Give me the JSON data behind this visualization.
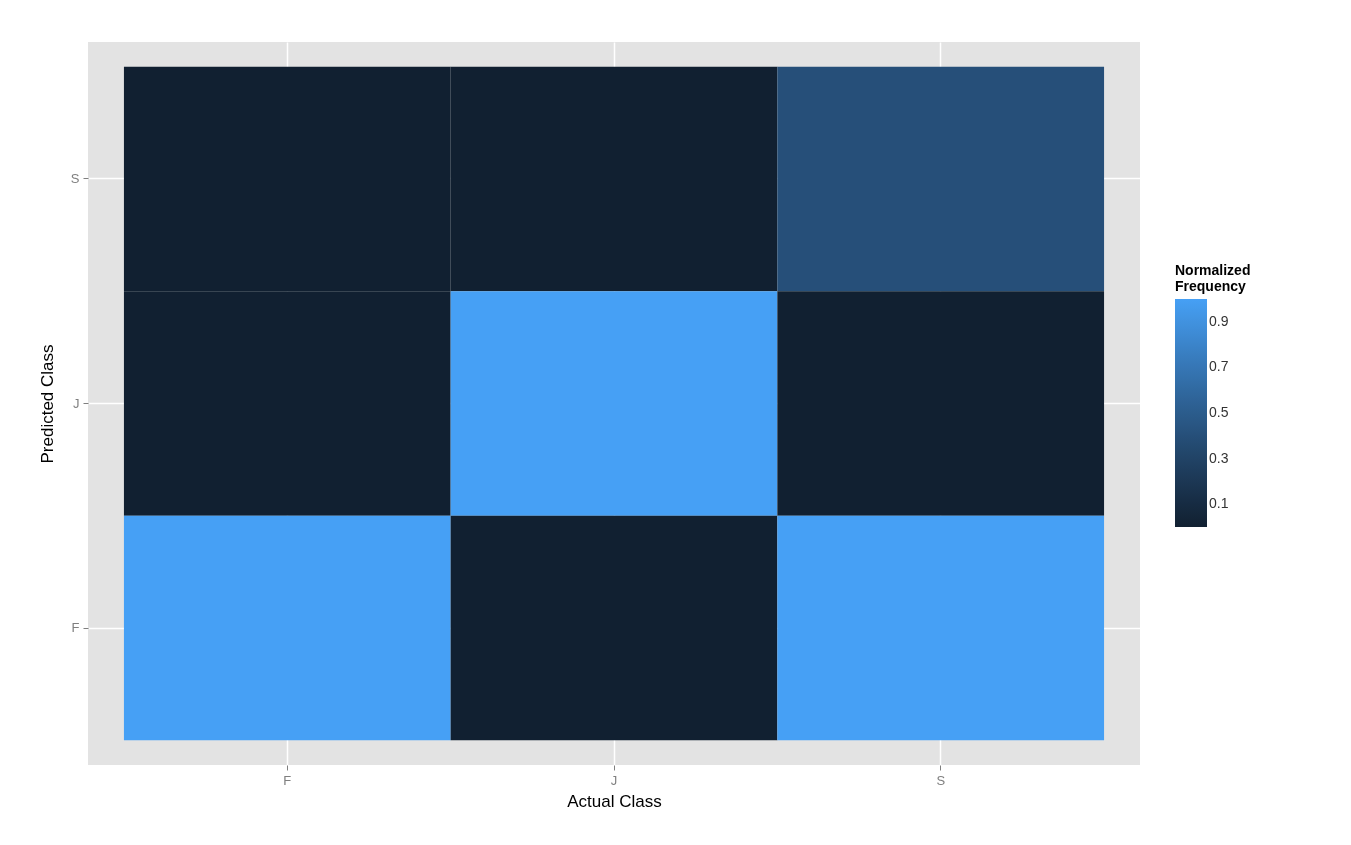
{
  "chart_data": {
    "type": "heatmap",
    "xlabel": "Actual Class",
    "ylabel": "Predicted Class",
    "legend_title": "Normalized Frequency",
    "categories": [
      "F",
      "J",
      "S"
    ],
    "y_categories": [
      "S",
      "J",
      "F"
    ],
    "cells": [
      [
        0,
        0,
        0.4
      ],
      [
        0,
        1,
        0
      ],
      [
        1,
        0,
        1
      ]
    ],
    "clim": [
      0,
      1
    ],
    "cticks": [
      0.1,
      0.3,
      0.5,
      0.7,
      0.9
    ],
    "grid": true
  }
}
